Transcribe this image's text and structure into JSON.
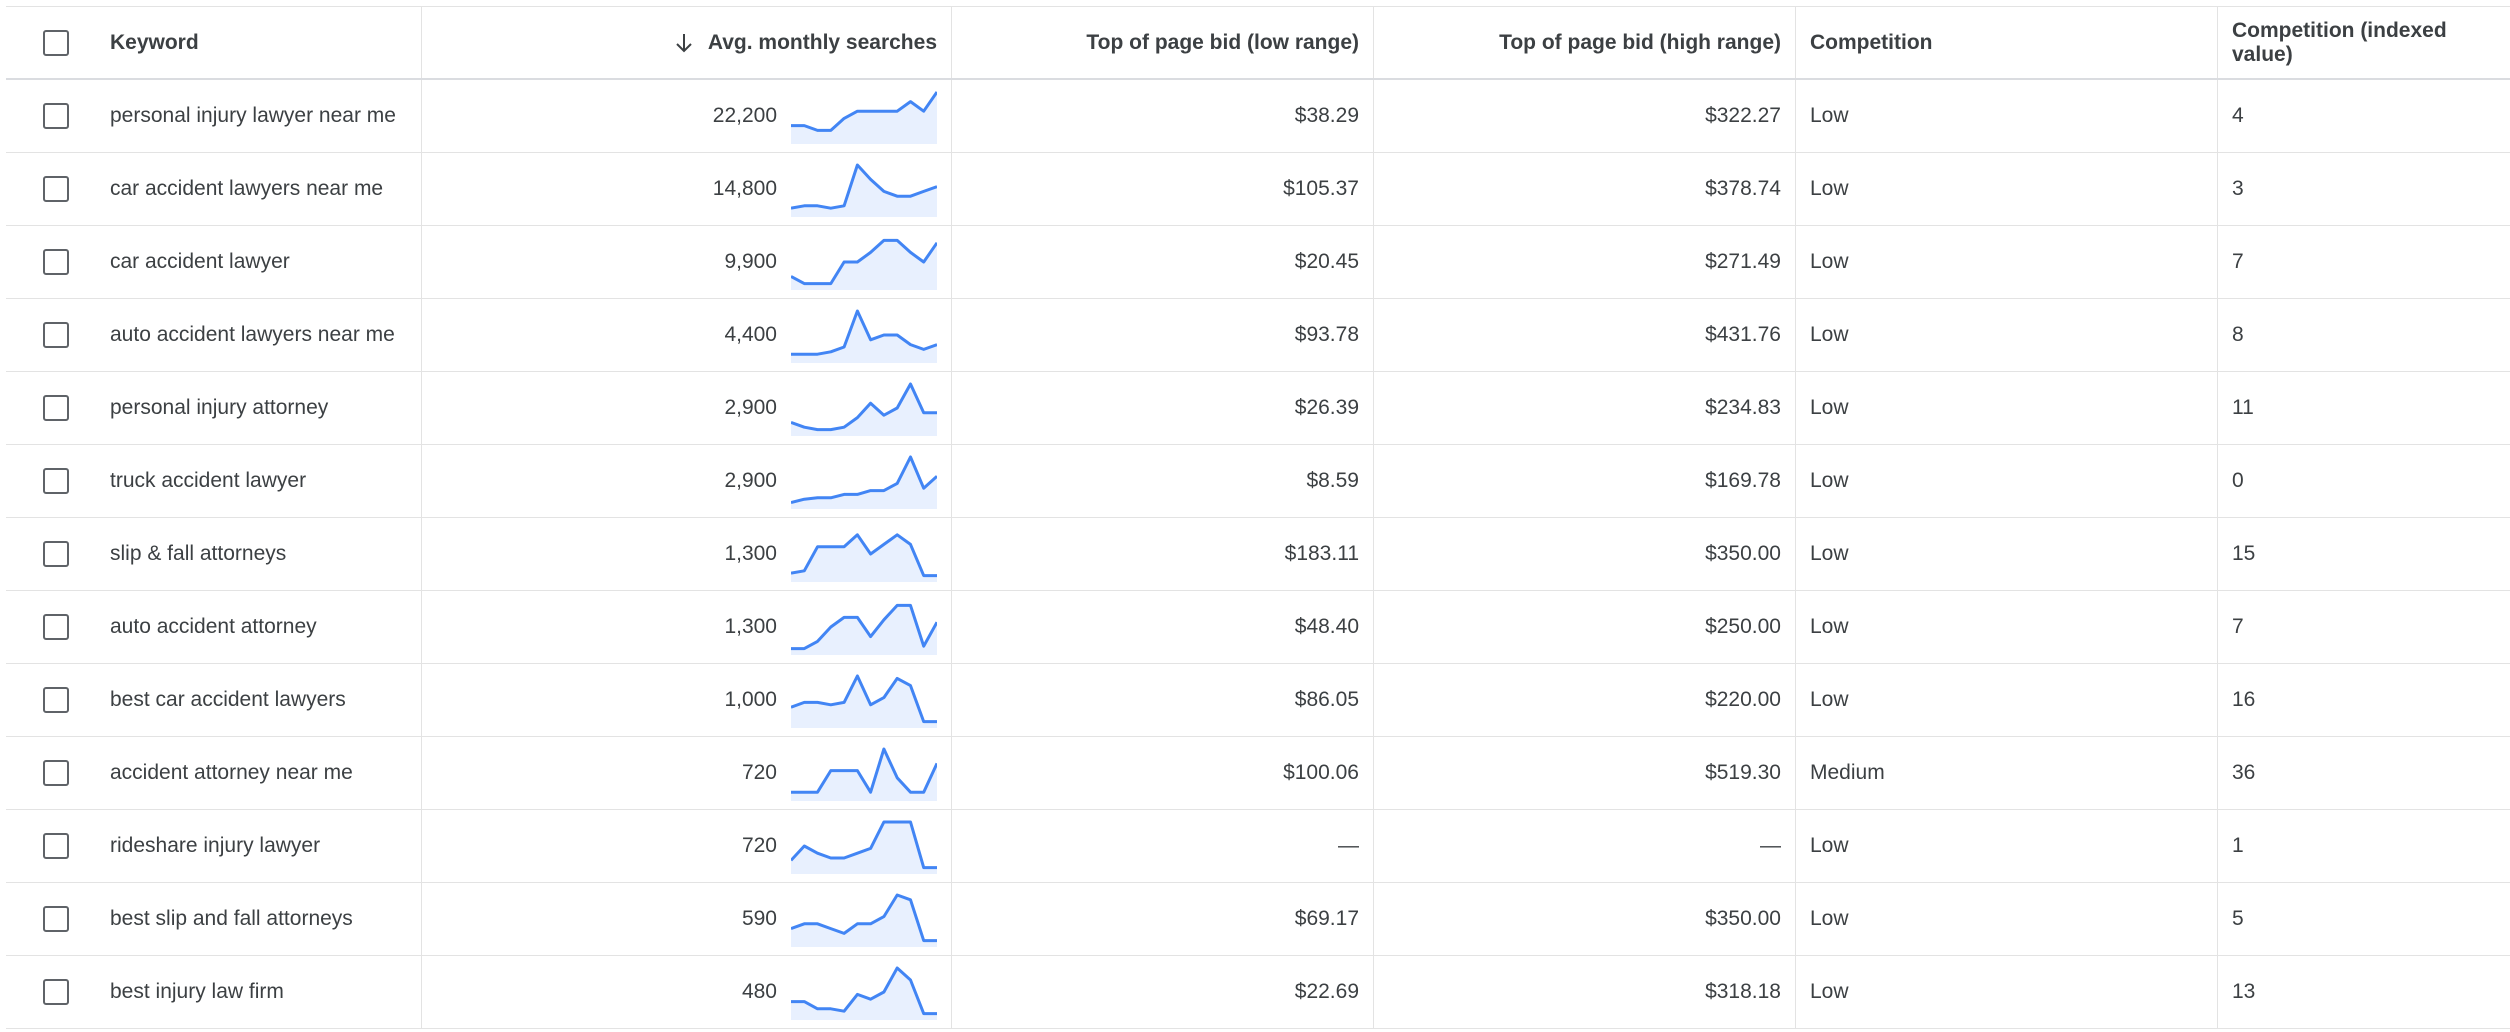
{
  "header": {
    "keyword": "Keyword",
    "avg": "Avg. monthly searches",
    "low_bid": "Top of page bid (low range)",
    "high_bid": "Top of page bid (high range)",
    "competition": "Competition",
    "competition_index": "Competition (indexed value)"
  },
  "trend_color": "#4285f4",
  "trend_fill": "#e8f0fe",
  "rows": [
    {
      "keyword": "personal injury lawyer near me",
      "avg": "22,200",
      "low": "$38.29",
      "high": "$322.27",
      "competition": "Low",
      "index": "4",
      "trend": [
        0.3,
        0.3,
        0.2,
        0.2,
        0.45,
        0.6,
        0.6,
        0.6,
        0.6,
        0.8,
        0.6,
        1.0
      ]
    },
    {
      "keyword": "car accident lawyers near me",
      "avg": "14,800",
      "low": "$105.37",
      "high": "$378.74",
      "competition": "Low",
      "index": "3",
      "trend": [
        0.1,
        0.15,
        0.15,
        0.1,
        0.15,
        1.0,
        0.7,
        0.45,
        0.35,
        0.35,
        0.45,
        0.55
      ]
    },
    {
      "keyword": "car accident lawyer",
      "avg": "9,900",
      "low": "$20.45",
      "high": "$271.49",
      "competition": "Low",
      "index": "7",
      "trend": [
        0.2,
        0.05,
        0.05,
        0.05,
        0.5,
        0.5,
        0.7,
        0.95,
        0.95,
        0.7,
        0.5,
        0.9
      ]
    },
    {
      "keyword": "auto accident lawyers near me",
      "avg": "4,400",
      "low": "$93.78",
      "high": "$431.76",
      "competition": "Low",
      "index": "8",
      "trend": [
        0.1,
        0.1,
        0.1,
        0.15,
        0.25,
        1.0,
        0.4,
        0.5,
        0.5,
        0.3,
        0.2,
        0.3
      ]
    },
    {
      "keyword": "personal injury attorney",
      "avg": "2,900",
      "low": "$26.39",
      "high": "$234.83",
      "competition": "Low",
      "index": "11",
      "trend": [
        0.2,
        0.1,
        0.05,
        0.05,
        0.1,
        0.3,
        0.6,
        0.35,
        0.5,
        1.0,
        0.4,
        0.4
      ]
    },
    {
      "keyword": "truck accident lawyer",
      "avg": "2,900",
      "low": "$8.59",
      "high": "$169.78",
      "competition": "Low",
      "index": "0",
      "trend": [
        0.05,
        0.12,
        0.15,
        0.15,
        0.22,
        0.22,
        0.3,
        0.3,
        0.45,
        1.0,
        0.35,
        0.6
      ]
    },
    {
      "keyword": "slip & fall attorneys",
      "avg": "1,300",
      "low": "$183.11",
      "high": "$350.00",
      "competition": "Low",
      "index": "15",
      "trend": [
        0.1,
        0.15,
        0.65,
        0.65,
        0.65,
        0.9,
        0.5,
        0.7,
        0.9,
        0.7,
        0.05,
        0.05
      ]
    },
    {
      "keyword": "auto accident attorney",
      "avg": "1,300",
      "low": "$48.40",
      "high": "$250.00",
      "competition": "Low",
      "index": "7",
      "trend": [
        0.05,
        0.05,
        0.2,
        0.5,
        0.7,
        0.7,
        0.3,
        0.65,
        0.95,
        0.95,
        0.1,
        0.6
      ]
    },
    {
      "keyword": "best car accident lawyers",
      "avg": "1,000",
      "low": "$86.05",
      "high": "$220.00",
      "competition": "Low",
      "index": "16",
      "trend": [
        0.35,
        0.45,
        0.45,
        0.4,
        0.45,
        1.0,
        0.4,
        0.55,
        0.95,
        0.8,
        0.05,
        0.05
      ]
    },
    {
      "keyword": "accident attorney near me",
      "avg": "720",
      "low": "$100.06",
      "high": "$519.30",
      "competition": "Medium",
      "index": "36",
      "trend": [
        0.1,
        0.1,
        0.1,
        0.55,
        0.55,
        0.55,
        0.1,
        1.0,
        0.4,
        0.1,
        0.1,
        0.7
      ]
    },
    {
      "keyword": "rideshare injury lawyer",
      "avg": "720",
      "low": "—",
      "high": "—",
      "competition": "Low",
      "index": "1",
      "trend": [
        0.2,
        0.5,
        0.35,
        0.25,
        0.25,
        0.35,
        0.45,
        1.0,
        1.0,
        1.0,
        0.05,
        0.05
      ]
    },
    {
      "keyword": "best slip and fall attorneys",
      "avg": "590",
      "low": "$69.17",
      "high": "$350.00",
      "competition": "Low",
      "index": "5",
      "trend": [
        0.3,
        0.4,
        0.4,
        0.3,
        0.2,
        0.4,
        0.4,
        0.55,
        1.0,
        0.9,
        0.05,
        0.05
      ]
    },
    {
      "keyword": "best injury law firm",
      "avg": "480",
      "low": "$22.69",
      "high": "$318.18",
      "competition": "Low",
      "index": "13",
      "trend": [
        0.3,
        0.3,
        0.15,
        0.15,
        0.1,
        0.45,
        0.35,
        0.5,
        1.0,
        0.75,
        0.05,
        0.05
      ]
    }
  ]
}
